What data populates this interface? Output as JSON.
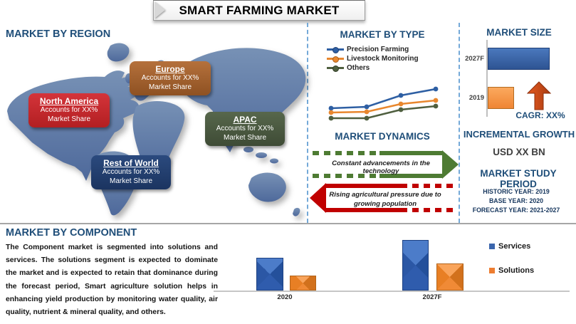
{
  "title": "SMART FARMING MARKET",
  "region": {
    "heading": "MARKET BY REGION",
    "labels": [
      {
        "name": "North America",
        "line1": "Accounts for XX%",
        "line2": "Market Share",
        "color": "#C9262C"
      },
      {
        "name": "Europe",
        "line1": "Accounts for XX%",
        "line2": "Market Share",
        "color": "#A2622F"
      },
      {
        "name": "APAC",
        "line1": "Accounts for XX%",
        "line2": "Market Share",
        "color": "#4B5942"
      },
      {
        "name": "Rest of World",
        "line1": "Accounts for XX%",
        "line2": "Market Share",
        "color": "#24406F"
      }
    ]
  },
  "type_section": {
    "heading": "MARKET BY TYPE",
    "legend": [
      "Precision Farming",
      "Livestock Monitoring",
      "Others"
    ]
  },
  "dynamics": {
    "heading": "MARKET DYNAMICS",
    "driver": "Constant advancements in the technology",
    "restraint": "Rising agricultural pressure due to growing population",
    "driver_color": "#4E7B33",
    "restraint_color": "#C00000"
  },
  "size_section": {
    "heading": "MARKET SIZE",
    "bar_labels": [
      "2027F",
      "2019"
    ],
    "cagr_label": "CAGR: XX%",
    "incremental_heading": "INCREMENTAL GROWTH",
    "incremental_value": "USD XX BN",
    "study_heading": "MARKET STUDY PERIOD",
    "study_lines": [
      "HISTORIC YEAR: 2019",
      "BASE YEAR: 2020",
      "FORECAST YEAR: 2021-2027"
    ]
  },
  "component": {
    "heading": "MARKET BY COMPONENT",
    "paragraph": "The Component market is segmented into solutions and services. The solutions segment is expected to dominate the market and is expected to retain that dominance during the forecast period, Smart agriculture solution helps in enhancing yield production by monitoring water quality, air quality, nutrient & mineral quality, and others.",
    "x_labels": [
      "2020",
      "2027F"
    ],
    "legend": [
      "Services",
      "Solutions"
    ]
  },
  "chart_data": [
    {
      "type": "line",
      "title": "MARKET BY TYPE",
      "series": [
        {
          "name": "Precision Farming",
          "color": "#2E5FA3",
          "values": [
            2.6,
            2.8,
            4.4,
            5.3
          ]
        },
        {
          "name": "Livestock Monitoring",
          "color": "#E8872E",
          "values": [
            2.0,
            2.1,
            3.2,
            3.7
          ]
        },
        {
          "name": "Others",
          "color": "#4F5F3F",
          "values": [
            1.2,
            1.2,
            2.4,
            2.9
          ]
        }
      ],
      "units": "relative trend (no axis values shown)",
      "legend_position": "top-left",
      "grid": false
    },
    {
      "type": "bar",
      "orientation": "horizontal",
      "title": "MARKET SIZE",
      "categories": [
        "2027F",
        "2019"
      ],
      "values": [
        85,
        35
      ],
      "colors": [
        "#3A66AE",
        "#F79646"
      ],
      "units": "relative bar length (values shown as XX)",
      "annotation": "CAGR: XX%"
    },
    {
      "type": "bar",
      "title": "MARKET BY COMPONENT",
      "categories": [
        "2020",
        "2027F"
      ],
      "series": [
        {
          "name": "Services",
          "color": "#2E5FA3",
          "values": [
            44,
            69
          ]
        },
        {
          "name": "Solutions",
          "color": "#ED8234",
          "values": [
            19,
            36
          ]
        }
      ],
      "units": "relative bar height (values not shown)",
      "legend_position": "right",
      "grid": false
    }
  ]
}
